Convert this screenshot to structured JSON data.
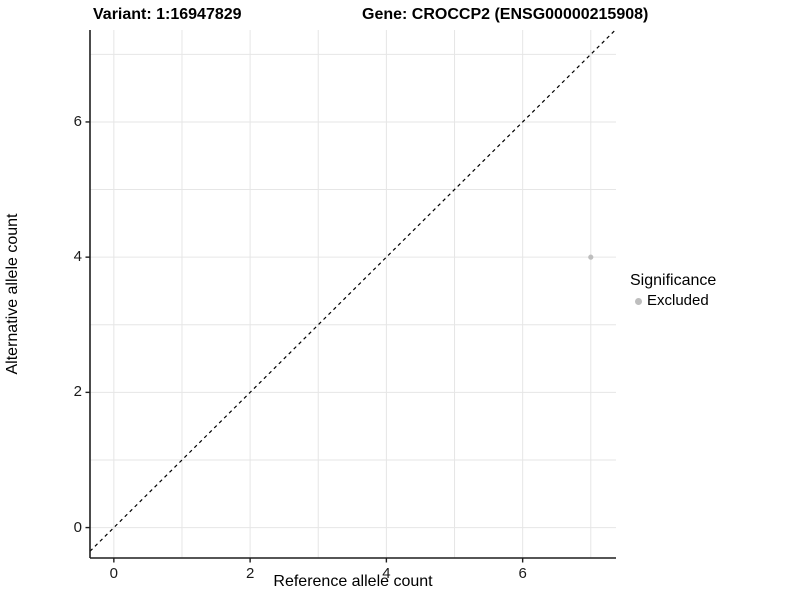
{
  "figure": {
    "title_left": "Variant: 1:16947829",
    "title_right": "Gene: CROCCP2 (ENSG00000215908)"
  },
  "chart_data": {
    "type": "scatter",
    "title": "Variant: 1:16947829    Gene: CROCCP2 (ENSG00000215908)",
    "xlabel": "Reference allele count",
    "ylabel": "Alternative allele count",
    "xlim": [
      -0.35,
      7.37
    ],
    "ylim": [
      -0.45,
      7.36
    ],
    "x_ticks": [
      0,
      2,
      4,
      6
    ],
    "y_ticks": [
      0,
      2,
      4,
      6
    ],
    "grid_values": [
      0,
      1,
      2,
      3,
      4,
      5,
      6,
      7
    ],
    "grid": true,
    "series": [
      {
        "name": "Excluded",
        "points": [
          [
            7,
            4
          ]
        ],
        "color": "#bebebe",
        "point_radius": 2.6
      }
    ],
    "reference_line": {
      "type": "identity",
      "slope": 1,
      "intercept": 0,
      "style": "dashed",
      "color": "#000000"
    },
    "legend": {
      "title": "Significance",
      "position": "right",
      "entries": [
        {
          "label": "Excluded",
          "color": "#bebebe"
        }
      ]
    },
    "colors": {
      "grid": "#e6e6e6",
      "axis": "#1f1f1f",
      "text": "#000000"
    }
  }
}
